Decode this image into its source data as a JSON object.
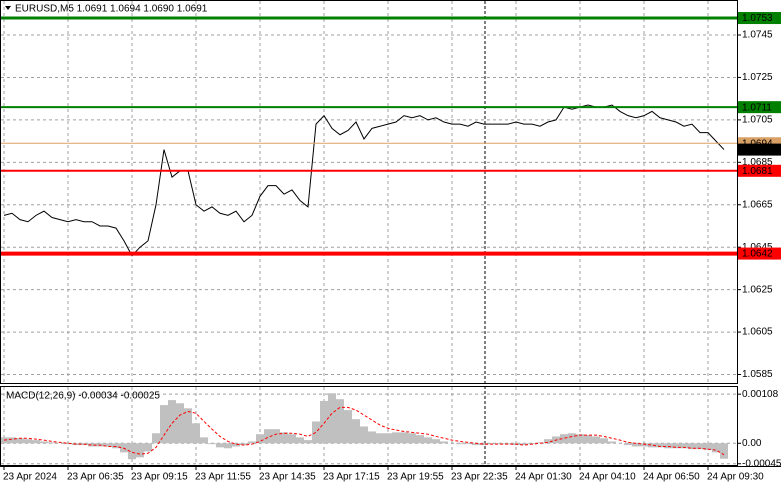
{
  "chart_data": [
    {
      "type": "line",
      "title": "EURUSD,M5  1.0691 1.0694 1.0690 1.0691",
      "color": "#000000",
      "grid": true,
      "x": [
        "23 Apr 2024",
        null,
        null,
        null,
        null,
        null,
        null,
        null,
        "23 Apr 06:35",
        null,
        null,
        null,
        null,
        null,
        null,
        null,
        "23 Apr 09:15",
        null,
        null,
        null,
        null,
        null,
        null,
        null,
        "23 Apr 11:55",
        null,
        null,
        null,
        null,
        null,
        null,
        null,
        "23 Apr 14:35",
        null,
        null,
        null,
        null,
        null,
        null,
        null,
        "23 Apr 17:15",
        null,
        null,
        null,
        null,
        null,
        null,
        null,
        "23 Apr 19:55",
        null,
        null,
        null,
        null,
        null,
        null,
        null,
        "23 Apr 22:35",
        null,
        null,
        null,
        null,
        null,
        null,
        null,
        "24 Apr 01:30",
        null,
        null,
        null,
        null,
        null,
        null,
        null,
        "24 Apr 04:10",
        null,
        null,
        null,
        null,
        null,
        null,
        null,
        "24 Apr 06:50",
        null,
        null,
        null,
        null,
        null,
        null,
        null,
        "24 Apr 09:30",
        null,
        null
      ],
      "values": [
        1.066,
        1.0661,
        1.0658,
        1.0657,
        1.066,
        1.0662,
        1.0659,
        1.0658,
        1.0657,
        1.0658,
        1.0657,
        1.0657,
        1.0655,
        1.0655,
        1.0654,
        1.0648,
        1.0641,
        1.0645,
        1.0648,
        1.0665,
        1.0691,
        1.0678,
        1.0681,
        1.0681,
        1.0665,
        1.0662,
        1.0664,
        1.0661,
        1.066,
        1.0662,
        1.0657,
        1.066,
        1.0669,
        1.0674,
        1.0674,
        1.067,
        1.0672,
        1.0667,
        1.0664,
        1.0703,
        1.0707,
        1.0701,
        1.0698,
        1.07,
        1.0704,
        1.0696,
        1.0701,
        1.0702,
        1.0703,
        1.0704,
        1.0707,
        1.0706,
        1.0707,
        1.0705,
        1.0706,
        1.0704,
        1.0703,
        1.0703,
        1.0702,
        1.0704,
        1.0703,
        1.0703,
        1.0703,
        1.0703,
        1.0704,
        1.0703,
        1.0703,
        1.0702,
        1.0704,
        1.0705,
        1.0711,
        1.071,
        1.0711,
        1.0712,
        1.0711,
        1.0711,
        1.0712,
        1.0709,
        1.0707,
        1.0706,
        1.0707,
        1.0709,
        1.0706,
        1.0705,
        1.0704,
        1.0702,
        1.0703,
        1.0699,
        1.0699,
        1.0695,
        1.0691
      ],
      "ylim": [
        1.0581,
        1.07615
      ],
      "yticks": [
        1.0745,
        1.0725,
        1.0705,
        1.0685,
        1.0665,
        1.0645,
        1.0625,
        1.0605,
        1.0585
      ],
      "levels": [
        {
          "value": 1.0753,
          "color": "#008000",
          "width": 3
        },
        {
          "value": 1.0711,
          "color": "#008000",
          "width": 2
        },
        {
          "value": 1.0681,
          "color": "#ff0000",
          "width": 2
        },
        {
          "value": 1.0642,
          "color": "#ff0000",
          "width": 4
        }
      ],
      "ask_price": 1.0694,
      "ask_color": "#d9a066",
      "last_price": 1.0691
    },
    {
      "type": "macd",
      "title": "MACD(12,26,9) -0.00034 -0.00025",
      "grid": true,
      "series": [
        {
          "kind": "bar",
          "color": "#c0c0c0",
          "values": [
            0.00013,
            0.00013,
            0.00011,
            9e-05,
            7e-05,
            4e-05,
            2e-05,
            0,
            -2e-05,
            -4e-05,
            -4e-05,
            -7e-05,
            -7e-05,
            -7e-05,
            -0.00011,
            -0.0002,
            -0.00035,
            -0.00031,
            -0.00018,
            0.00022,
            0.00084,
            0.00095,
            0.00088,
            0.00077,
            0.00044,
            0.00013,
            -2e-05,
            -9e-05,
            -0.00011,
            -7e-05,
            -4e-05,
            4e-05,
            0.0002,
            0.00031,
            0.00031,
            0.00024,
            0.0002,
            0.00013,
            7e-05,
            0.00048,
            0.00093,
            0.0011,
            0.00097,
            0.00073,
            0.00053,
            0.00037,
            0.00026,
            0.00022,
            0.00022,
            0.00024,
            0.00024,
            0.00022,
            0.00018,
            0.00013,
            9e-05,
            4e-05,
            0,
            -2e-05,
            -2e-05,
            -4e-05,
            -4e-05,
            -2e-05,
            -2e-05,
            -2e-05,
            -4e-05,
            -4e-05,
            -2e-05,
            2e-05,
            9e-05,
            0.00015,
            0.0002,
            0.00022,
            0.0002,
            0.00018,
            0.00015,
            0.00011,
            4e-05,
            0,
            -4e-05,
            -7e-05,
            -7e-05,
            -9e-05,
            -9e-05,
            -0.00011,
            -0.00011,
            -0.00011,
            -0.00013,
            -0.00013,
            -0.00015,
            -0.0002,
            -0.00034
          ]
        },
        {
          "kind": "dashed-line",
          "color": "#ff0000",
          "values": [
            7e-05,
            9e-05,
            0.00011,
            0.00011,
            9e-05,
            7e-05,
            4e-05,
            2e-05,
            0,
            -2e-05,
            -2e-05,
            -4e-05,
            -4e-05,
            -7e-05,
            -7e-05,
            -0.00011,
            -0.0002,
            -0.00024,
            -0.00022,
            -9e-05,
            0.00018,
            0.00044,
            0.00062,
            0.0007,
            0.00066,
            0.00048,
            0.00031,
            0.00015,
            4e-05,
            -2e-05,
            -4e-05,
            -2e-05,
            4e-05,
            0.00013,
            0.0002,
            0.00022,
            0.00022,
            0.0002,
            0.00015,
            0.00024,
            0.00044,
            0.00066,
            0.00079,
            0.00079,
            0.00073,
            0.00062,
            0.00051,
            0.0004,
            0.00033,
            0.00029,
            0.00026,
            0.00024,
            0.00022,
            0.0002,
            0.00015,
            0.00011,
            7e-05,
            4e-05,
            2e-05,
            0,
            -2e-05,
            -2e-05,
            -2e-05,
            -2e-05,
            -2e-05,
            -4e-05,
            -2e-05,
            0,
            2e-05,
            7e-05,
            0.00011,
            0.00015,
            0.00018,
            0.00018,
            0.00018,
            0.00015,
            0.00011,
            7e-05,
            2e-05,
            0,
            -2e-05,
            -4e-05,
            -7e-05,
            -7e-05,
            -9e-05,
            -9e-05,
            -0.00011,
            -0.00011,
            -0.00013,
            -0.00015,
            -0.00025
          ]
        }
      ],
      "ylim": [
        -0.0005,
        0.00126
      ],
      "yticks": [
        0.00108,
        {
          "value": 0,
          "label": "0.00"
        },
        -0.00045
      ]
    }
  ]
}
